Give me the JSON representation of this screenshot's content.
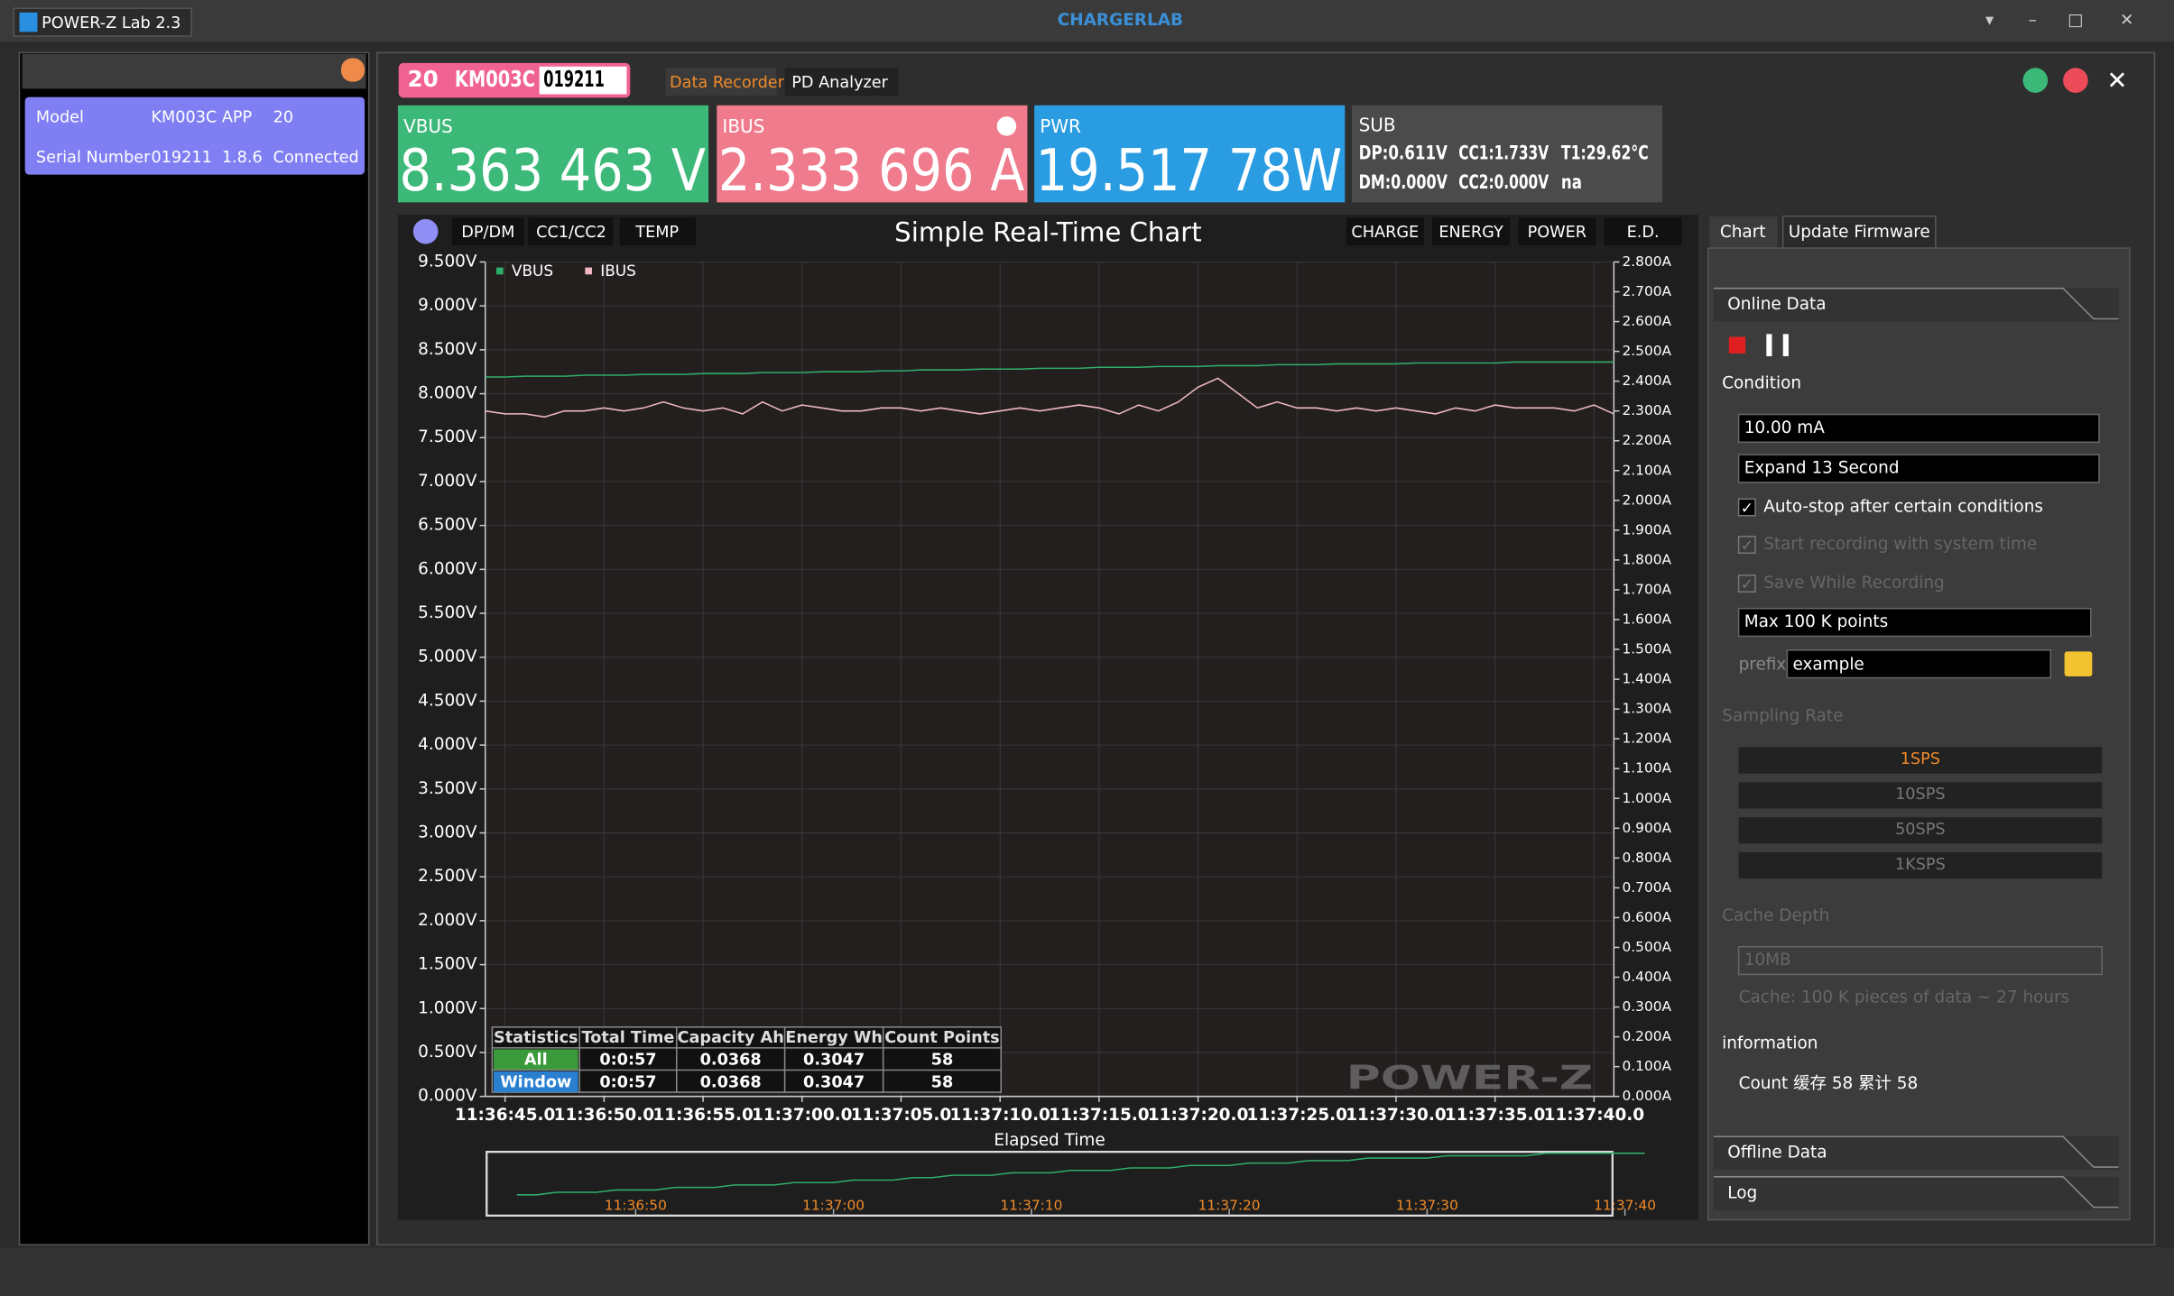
{
  "window": {
    "title": "POWER-Z Lab 2.3",
    "brand": "CHARGERLAB"
  },
  "device": {
    "model_label": "Model",
    "model": "KM003C",
    "app_label": "APP",
    "app": "20",
    "serial_label": "Serial Number",
    "serial": "019211",
    "version": "1.8.6",
    "status": "Connected"
  },
  "toolbar": {
    "tag_num": "20",
    "tag_model": "KM003C",
    "tag_serial": "019211",
    "tabs": [
      "Data Recorder",
      "PD Analyzer"
    ]
  },
  "readings": [
    {
      "label": "VBUS",
      "value": "8.363 463 V",
      "color": "#3cb878"
    },
    {
      "label": "IBUS",
      "value": "2.333 696 A",
      "color": "#ef7b8c"
    },
    {
      "label": "PWR",
      "value": "19.517 78W",
      "color": "#2a9ce2"
    }
  ],
  "sub": {
    "label": "SUB",
    "lines": [
      [
        "DP:0.611V",
        "CC1:1.733V",
        "T1:29.62°C"
      ],
      [
        "DM:0.000V",
        "CC2:0.000V",
        "na"
      ]
    ]
  },
  "chart_tabs_left": [
    "DP/DM",
    "CC1/CC2",
    "TEMP"
  ],
  "chart_tabs_right": [
    "CHARGE",
    "ENERGY",
    "POWER",
    "E.D."
  ],
  "chart": {
    "type": "line",
    "title": "Simple Real-Time Chart",
    "x_label": "Elapsed Time",
    "grid": true,
    "xlim": [
      0,
      57
    ],
    "xticks": [
      {
        "value": 1,
        "label": "11:36:45.0"
      },
      {
        "value": 6,
        "label": "11:36:50.0"
      },
      {
        "value": 11,
        "label": "11:36:55.0"
      },
      {
        "value": 16,
        "label": "11:37:00.0"
      },
      {
        "value": 21,
        "label": "11:37:05.0"
      },
      {
        "value": 26,
        "label": "11:37:10.0"
      },
      {
        "value": 31,
        "label": "11:37:15.0"
      },
      {
        "value": 36,
        "label": "11:37:20.0"
      },
      {
        "value": 41,
        "label": "11:37:25.0"
      },
      {
        "value": 46,
        "label": "11:37:30.0"
      },
      {
        "value": 51,
        "label": "11:37:35.0"
      },
      {
        "value": 56,
        "label": "11:37:40.0"
      }
    ],
    "ylim": [
      0,
      9.5
    ],
    "yticks": [
      {
        "value": 0,
        "label": "0.000V"
      },
      {
        "value": 0.5,
        "label": "0.500V"
      },
      {
        "value": 1,
        "label": "1.000V"
      },
      {
        "value": 1.5,
        "label": "1.500V"
      },
      {
        "value": 2,
        "label": "2.000V"
      },
      {
        "value": 2.5,
        "label": "2.500V"
      },
      {
        "value": 3,
        "label": "3.000V"
      },
      {
        "value": 3.5,
        "label": "3.500V"
      },
      {
        "value": 4,
        "label": "4.000V"
      },
      {
        "value": 4.5,
        "label": "4.500V"
      },
      {
        "value": 5,
        "label": "5.000V"
      },
      {
        "value": 5.5,
        "label": "5.500V"
      },
      {
        "value": 6,
        "label": "6.000V"
      },
      {
        "value": 6.5,
        "label": "6.500V"
      },
      {
        "value": 7,
        "label": "7.000V"
      },
      {
        "value": 7.5,
        "label": "7.500V"
      },
      {
        "value": 8,
        "label": "8.000V"
      },
      {
        "value": 8.5,
        "label": "8.500V"
      },
      {
        "value": 9,
        "label": "9.000V"
      },
      {
        "value": 9.5,
        "label": "9.500V"
      }
    ],
    "y2lim": [
      0,
      2.8
    ],
    "y2ticks": [
      {
        "value": 0,
        "label": "0.000A"
      },
      {
        "value": 0.1,
        "label": "0.100A"
      },
      {
        "value": 0.2,
        "label": "0.200A"
      },
      {
        "value": 0.3,
        "label": "0.300A"
      },
      {
        "value": 0.4,
        "label": "0.400A"
      },
      {
        "value": 0.5,
        "label": "0.500A"
      },
      {
        "value": 0.6,
        "label": "0.600A"
      },
      {
        "value": 0.7,
        "label": "0.700A"
      },
      {
        "value": 0.8,
        "label": "0.800A"
      },
      {
        "value": 0.9,
        "label": "0.900A"
      },
      {
        "value": 1,
        "label": "1.000A"
      },
      {
        "value": 1.1,
        "label": "1.100A"
      },
      {
        "value": 1.2,
        "label": "1.200A"
      },
      {
        "value": 1.3,
        "label": "1.300A"
      },
      {
        "value": 1.4,
        "label": "1.400A"
      },
      {
        "value": 1.5,
        "label": "1.500A"
      },
      {
        "value": 1.6,
        "label": "1.600A"
      },
      {
        "value": 1.7,
        "label": "1.700A"
      },
      {
        "value": 1.8,
        "label": "1.800A"
      },
      {
        "value": 1.9,
        "label": "1.900A"
      },
      {
        "value": 2,
        "label": "2.000A"
      },
      {
        "value": 2.1,
        "label": "2.100A"
      },
      {
        "value": 2.2,
        "label": "2.200A"
      },
      {
        "value": 2.3,
        "label": "2.300A"
      },
      {
        "value": 2.4,
        "label": "2.400A"
      },
      {
        "value": 2.5,
        "label": "2.500A"
      },
      {
        "value": 2.6,
        "label": "2.600A"
      },
      {
        "value": 2.7,
        "label": "2.700A"
      },
      {
        "value": 2.8,
        "label": "2.800A"
      }
    ],
    "series": [
      {
        "name": "VBUS",
        "color": "#2fae6a",
        "values": [
          8.19,
          8.19,
          8.2,
          8.2,
          8.2,
          8.21,
          8.21,
          8.21,
          8.22,
          8.22,
          8.22,
          8.23,
          8.23,
          8.23,
          8.24,
          8.24,
          8.24,
          8.25,
          8.25,
          8.25,
          8.26,
          8.26,
          8.27,
          8.27,
          8.27,
          8.28,
          8.28,
          8.28,
          8.29,
          8.29,
          8.29,
          8.3,
          8.3,
          8.3,
          8.31,
          8.31,
          8.31,
          8.32,
          8.32,
          8.32,
          8.33,
          8.33,
          8.33,
          8.34,
          8.34,
          8.34,
          8.34,
          8.35,
          8.35,
          8.35,
          8.35,
          8.35,
          8.36,
          8.36,
          8.36,
          8.36,
          8.36,
          8.36
        ]
      },
      {
        "name": "IBUS",
        "color": "#f1b8c4",
        "axis": "y2",
        "values": [
          2.3,
          2.29,
          2.29,
          2.28,
          2.3,
          2.3,
          2.31,
          2.3,
          2.31,
          2.33,
          2.31,
          2.3,
          2.31,
          2.29,
          2.33,
          2.3,
          2.32,
          2.31,
          2.3,
          2.3,
          2.31,
          2.31,
          2.3,
          2.31,
          2.3,
          2.29,
          2.3,
          2.31,
          2.3,
          2.31,
          2.32,
          2.31,
          2.29,
          2.32,
          2.3,
          2.33,
          2.38,
          2.41,
          2.36,
          2.31,
          2.33,
          2.31,
          2.31,
          2.3,
          2.31,
          2.3,
          2.31,
          2.3,
          2.29,
          2.31,
          2.3,
          2.32,
          2.31,
          2.31,
          2.31,
          2.3,
          2.32,
          2.29
        ]
      }
    ],
    "overview_xlim": [
      -1.6,
      55.5
    ],
    "overview_ticks": [
      {
        "value": 6,
        "label": "11:36:50"
      },
      {
        "value": 16,
        "label": "11:37:00"
      },
      {
        "value": 26,
        "label": "11:37:10"
      },
      {
        "value": 36,
        "label": "11:37:20"
      },
      {
        "value": 46,
        "label": "11:37:30"
      },
      {
        "value": 56,
        "label": "11:37:40"
      }
    ]
  },
  "statistics": {
    "header": [
      "Statistics",
      "Total Time",
      "Capacity Ah",
      "Energy Wh",
      "Count Points"
    ],
    "rows": [
      [
        "All",
        "0:0:57",
        "0.0368",
        "0.3047",
        "58"
      ],
      [
        "Window",
        "0:0:57",
        "0.0368",
        "0.3047",
        "58"
      ]
    ]
  },
  "watermark": "POWER-Z",
  "panel": {
    "tabs": [
      "Chart",
      "Update Firmware"
    ],
    "online": "Online Data",
    "condition": "Condition",
    "current": "10.00 mA",
    "expand": "Expand 13 Second",
    "checks": [
      "Auto-stop after certain conditions",
      "Start recording with system time",
      "Save While Recording"
    ],
    "max_points": "Max 100 K points",
    "prefix_label": "prefix",
    "prefix": "example",
    "sampling": "Sampling Rate",
    "rates": [
      "1SPS",
      "10SPS",
      "50SPS",
      "1KSPS"
    ],
    "cache": "Cache Depth",
    "cache_size": "10MB",
    "cache_note": "Cache: 100 K pieces of data  ~ 27 hours",
    "information": "information",
    "count": "Count  缓存 58 累计 58",
    "offline": "Offline Data",
    "log": "Log"
  }
}
